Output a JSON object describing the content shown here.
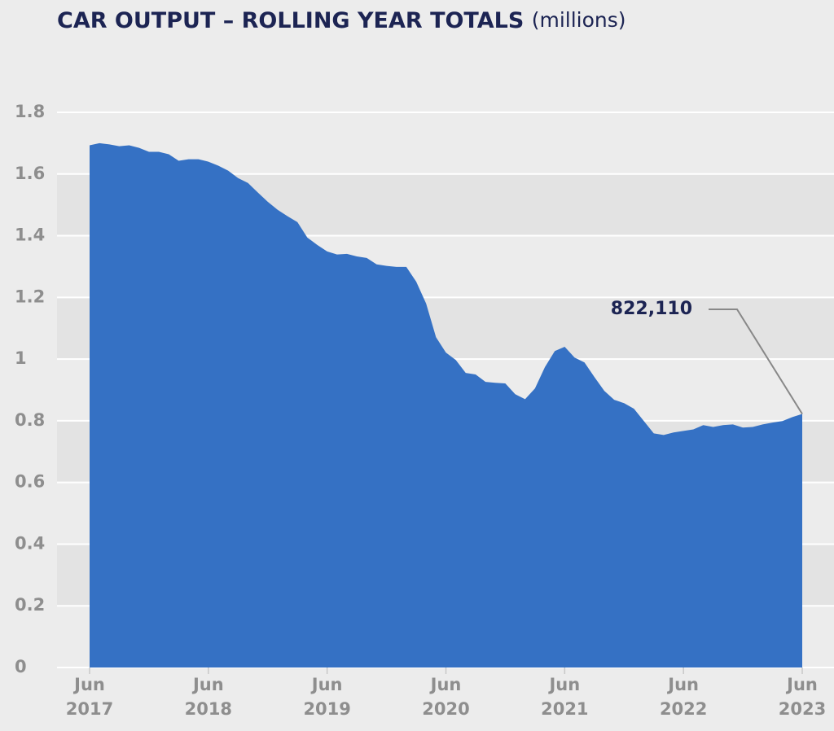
{
  "chart_data": {
    "type": "area",
    "title": "CAR OUTPUT – ROLLING YEAR TOTALS",
    "subtitle": "(millions)",
    "x": [
      "2017-06",
      "2017-07",
      "2017-08",
      "2017-09",
      "2017-10",
      "2017-11",
      "2017-12",
      "2018-01",
      "2018-02",
      "2018-03",
      "2018-04",
      "2018-05",
      "2018-06",
      "2018-07",
      "2018-08",
      "2018-09",
      "2018-10",
      "2018-11",
      "2018-12",
      "2019-01",
      "2019-02",
      "2019-03",
      "2019-04",
      "2019-05",
      "2019-06",
      "2019-07",
      "2019-08",
      "2019-09",
      "2019-10",
      "2019-11",
      "2019-12",
      "2020-01",
      "2020-02",
      "2020-03",
      "2020-04",
      "2020-05",
      "2020-06",
      "2020-07",
      "2020-08",
      "2020-09",
      "2020-10",
      "2020-11",
      "2020-12",
      "2021-01",
      "2021-02",
      "2021-03",
      "2021-04",
      "2021-05",
      "2021-06",
      "2021-07",
      "2021-08",
      "2021-09",
      "2021-10",
      "2021-11",
      "2021-12",
      "2022-01",
      "2022-02",
      "2022-03",
      "2022-04",
      "2022-05",
      "2022-06",
      "2022-07",
      "2022-08",
      "2022-09",
      "2022-10",
      "2022-11",
      "2022-12",
      "2023-01",
      "2023-02",
      "2023-03",
      "2023-04",
      "2023-05",
      "2023-06"
    ],
    "values": [
      1.693,
      1.7,
      1.696,
      1.69,
      1.693,
      1.685,
      1.672,
      1.672,
      1.664,
      1.643,
      1.648,
      1.648,
      1.64,
      1.627,
      1.611,
      1.587,
      1.571,
      1.54,
      1.51,
      1.484,
      1.463,
      1.444,
      1.394,
      1.37,
      1.349,
      1.339,
      1.341,
      1.333,
      1.328,
      1.307,
      1.302,
      1.299,
      1.299,
      1.251,
      1.18,
      1.071,
      1.021,
      0.997,
      0.955,
      0.95,
      0.926,
      0.923,
      0.921,
      0.886,
      0.87,
      0.905,
      0.974,
      1.026,
      1.04,
      1.005,
      0.989,
      0.942,
      0.897,
      0.868,
      0.857,
      0.839,
      0.799,
      0.759,
      0.754,
      0.762,
      0.767,
      0.772,
      0.786,
      0.78,
      0.786,
      0.788,
      0.778,
      0.78,
      0.788,
      0.794,
      0.799,
      0.812,
      0.82211
    ],
    "value_labels": [
      null,
      null,
      null,
      null,
      null,
      null,
      null,
      null,
      null,
      null,
      null,
      null,
      null,
      null,
      null,
      null,
      null,
      null,
      null,
      null,
      null,
      null,
      null,
      null,
      null,
      null,
      null,
      null,
      null,
      null,
      null,
      null,
      null,
      null,
      null,
      null,
      null,
      null,
      null,
      null,
      null,
      null,
      null,
      null,
      null,
      null,
      null,
      null,
      null,
      null,
      null,
      null,
      null,
      null,
      null,
      null,
      null,
      null,
      null,
      null,
      null,
      null,
      null,
      null,
      null,
      null,
      null,
      null,
      null,
      null,
      null,
      null,
      "822,110"
    ],
    "color": "#3571c4",
    "ylim": [
      0,
      1.8
    ],
    "yticks": [
      0,
      0.2,
      0.4,
      0.6,
      0.8,
      1,
      1.2,
      1.4,
      1.6,
      1.8
    ],
    "xticks": [
      {
        "value": "2017-06",
        "label": [
          "Jun",
          "2017"
        ]
      },
      {
        "value": "2018-06",
        "label": [
          "Jun",
          "2018"
        ]
      },
      {
        "value": "2019-06",
        "label": [
          "Jun",
          "2019"
        ]
      },
      {
        "value": "2020-06",
        "label": [
          "Jun",
          "2020"
        ]
      },
      {
        "value": "2021-06",
        "label": [
          "Jun",
          "2021"
        ]
      },
      {
        "value": "2022-06",
        "label": [
          "Jun",
          "2022"
        ]
      },
      {
        "value": "2023-06",
        "label": [
          "Jun",
          "2023"
        ]
      }
    ],
    "grid": true
  }
}
